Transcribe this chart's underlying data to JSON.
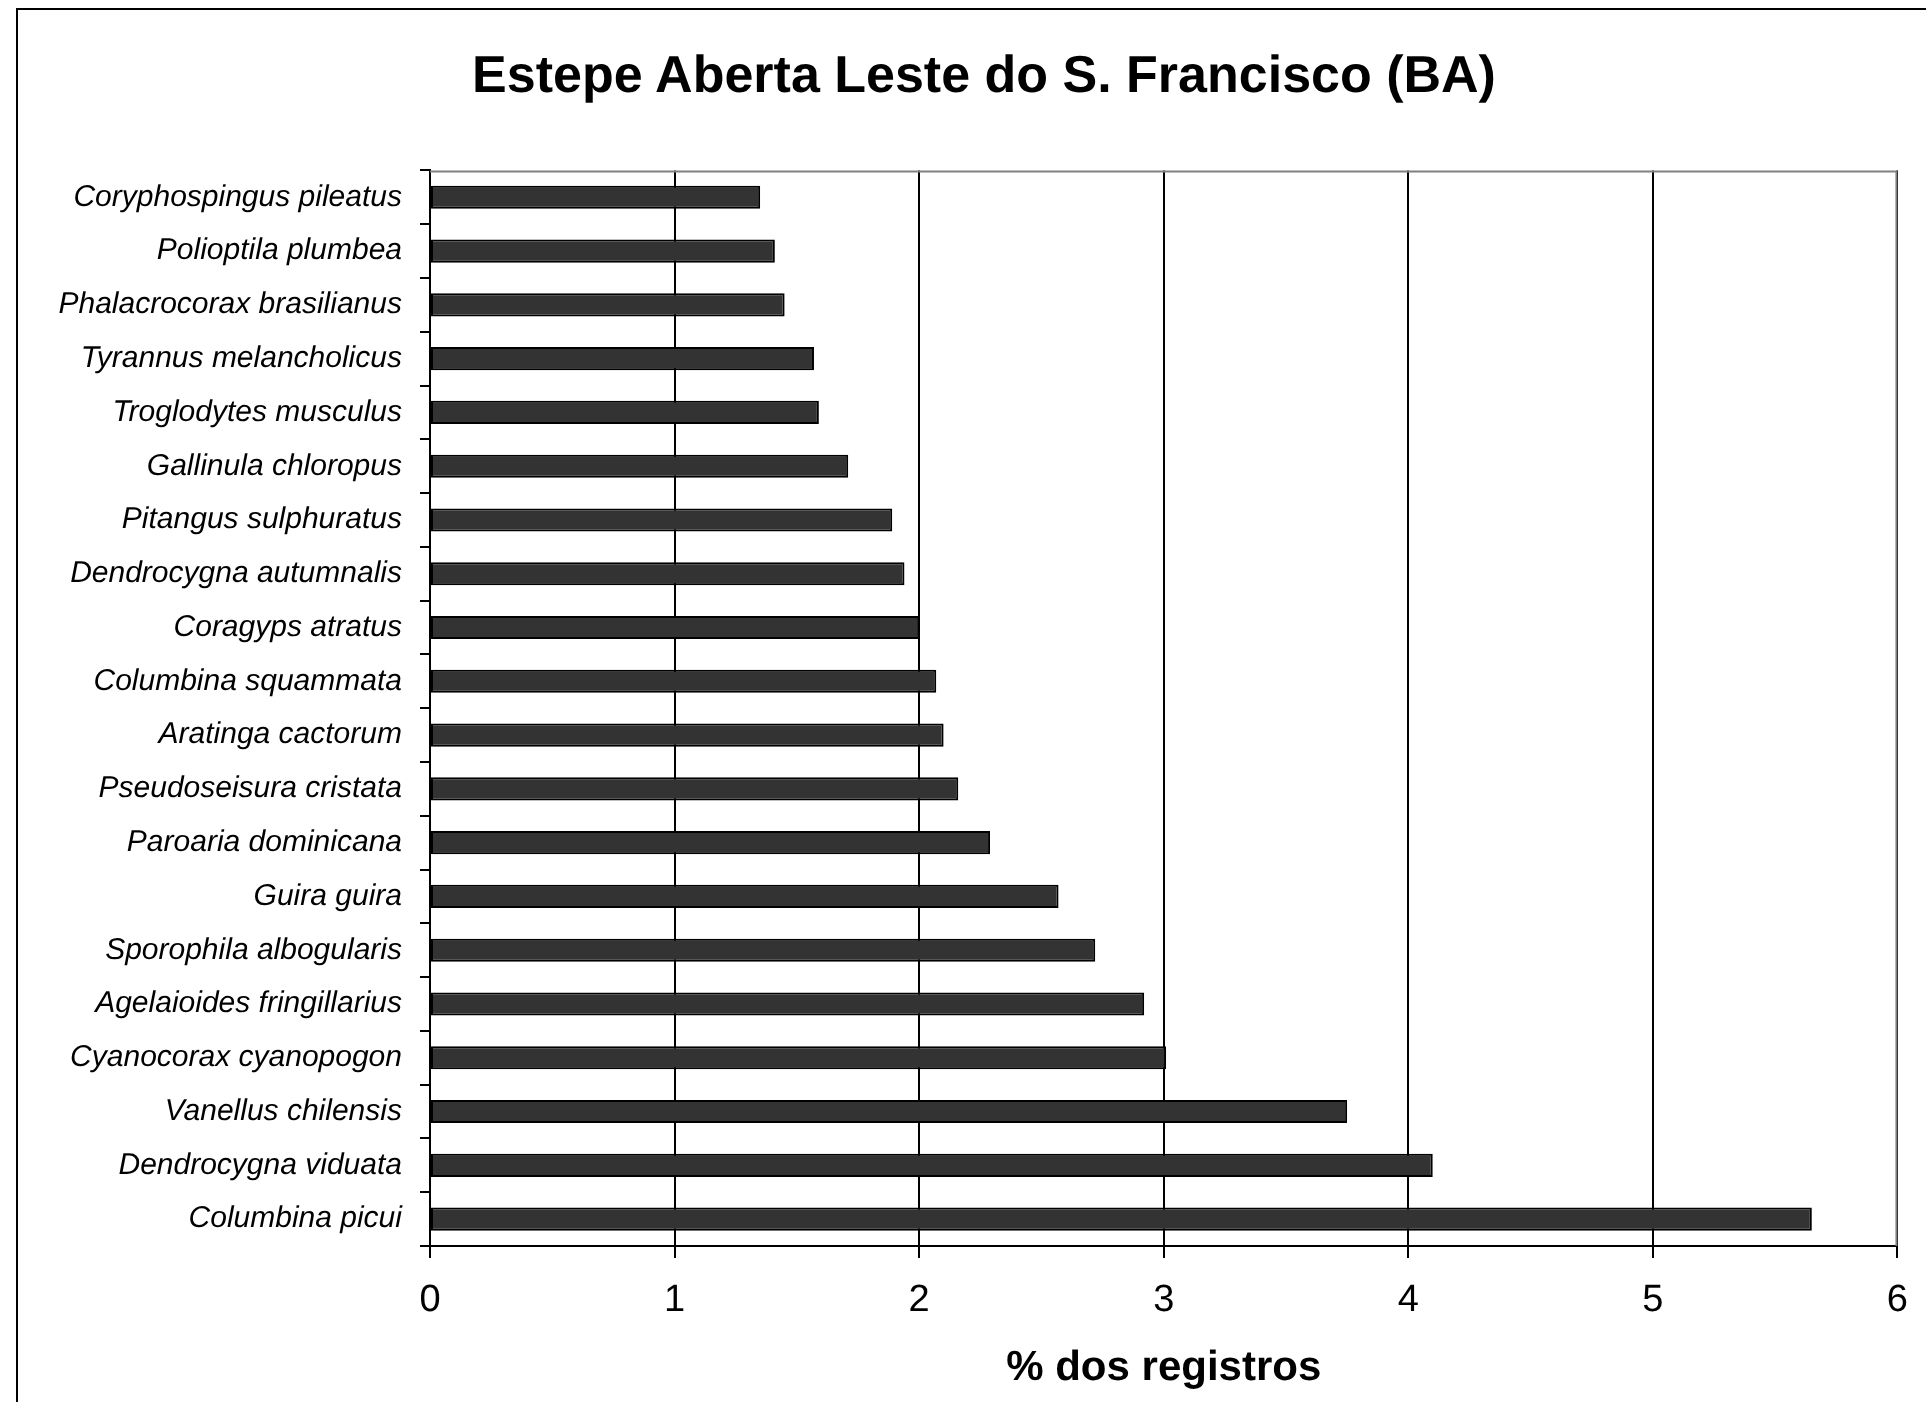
{
  "chart_data": {
    "type": "bar",
    "orientation": "horizontal",
    "title": "Estepe Aberta Leste do S. Francisco (BA)",
    "xlabel": "% dos registros",
    "categories": [
      "Coryphospingus pileatus",
      "Polioptila plumbea",
      "Phalacrocorax brasilianus",
      "Tyrannus melancholicus",
      "Troglodytes musculus",
      "Gallinula chloropus",
      "Pitangus sulphuratus",
      "Dendrocygna autumnalis",
      "Coragyps atratus",
      "Columbina squammata",
      "Aratinga cactorum",
      "Pseudoseisura cristata",
      "Paroaria dominicana",
      "Guira guira",
      "Sporophila albogularis",
      "Agelaioides fringillarius",
      "Cyanocorax cyanopogon",
      "Vanellus chilensis",
      "Dendrocygna viduata",
      "Columbina picui"
    ],
    "values": [
      1.35,
      1.41,
      1.45,
      1.57,
      1.59,
      1.71,
      1.89,
      1.94,
      2.0,
      2.07,
      2.1,
      2.16,
      2.29,
      2.57,
      2.72,
      2.92,
      3.01,
      3.75,
      4.1,
      5.65
    ],
    "color": "#333333",
    "xlim": [
      0,
      6
    ],
    "xticks": [
      0,
      1,
      2,
      3,
      4,
      5,
      6
    ],
    "grid": "x"
  }
}
